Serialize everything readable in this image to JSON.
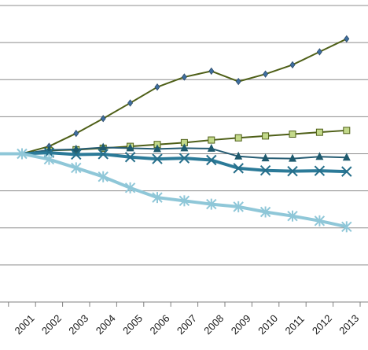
{
  "chart_data": {
    "type": "line",
    "title": "",
    "xlabel": "",
    "ylabel": "",
    "categories": [
      "2001",
      "2002",
      "2003",
      "2004",
      "2005",
      "2006",
      "2007",
      "2008",
      "2009",
      "2010",
      "2011",
      "2012",
      "2013"
    ],
    "ylim": [
      60,
      140
    ],
    "yticks": [
      60,
      70,
      80,
      90,
      100,
      110,
      120,
      130,
      140
    ],
    "grid": true,
    "legend": "none",
    "series": [
      {
        "marker": "diamond",
        "color": "#4e5f17",
        "marker_color": "#3f6fa0",
        "line_width": 2,
        "values": [
          100,
          102,
          105.5,
          109.5,
          113.7,
          118,
          120.7,
          122.3,
          119.5,
          121.5,
          124,
          127.5,
          131
        ]
      },
      {
        "marker": "square",
        "color": "#4e5f17",
        "marker_color": "#c3d98a",
        "line_width": 2,
        "values": [
          100,
          100.9,
          101.1,
          101.5,
          102,
          102.5,
          103,
          103.7,
          104.3,
          104.8,
          105.3,
          105.8,
          106.3
        ]
      },
      {
        "marker": "triangle",
        "color": "#265c73",
        "marker_color": "#1e5a6e",
        "line_width": 2,
        "values": [
          100,
          101,
          101.2,
          101.7,
          101.5,
          101.3,
          101.5,
          101.4,
          99.3,
          98.8,
          98.7,
          99.2,
          99
        ]
      },
      {
        "marker": "x",
        "color": "#2b7a98",
        "marker_color": "#256e8a",
        "line_width": 4,
        "values": [
          100,
          100.3,
          99.8,
          99.9,
          99.1,
          98.6,
          98.8,
          98.3,
          96.1,
          95.5,
          95.3,
          95.4,
          95.2
        ]
      },
      {
        "marker": "asterisk",
        "color": "#8fc7d8",
        "marker_color": "#8fc7d8",
        "line_width": 4,
        "values": [
          100,
          98.5,
          96.2,
          93.8,
          90.8,
          88.2,
          87.3,
          86.4,
          85.7,
          84.3,
          83.2,
          81.9,
          80.3
        ]
      }
    ]
  }
}
